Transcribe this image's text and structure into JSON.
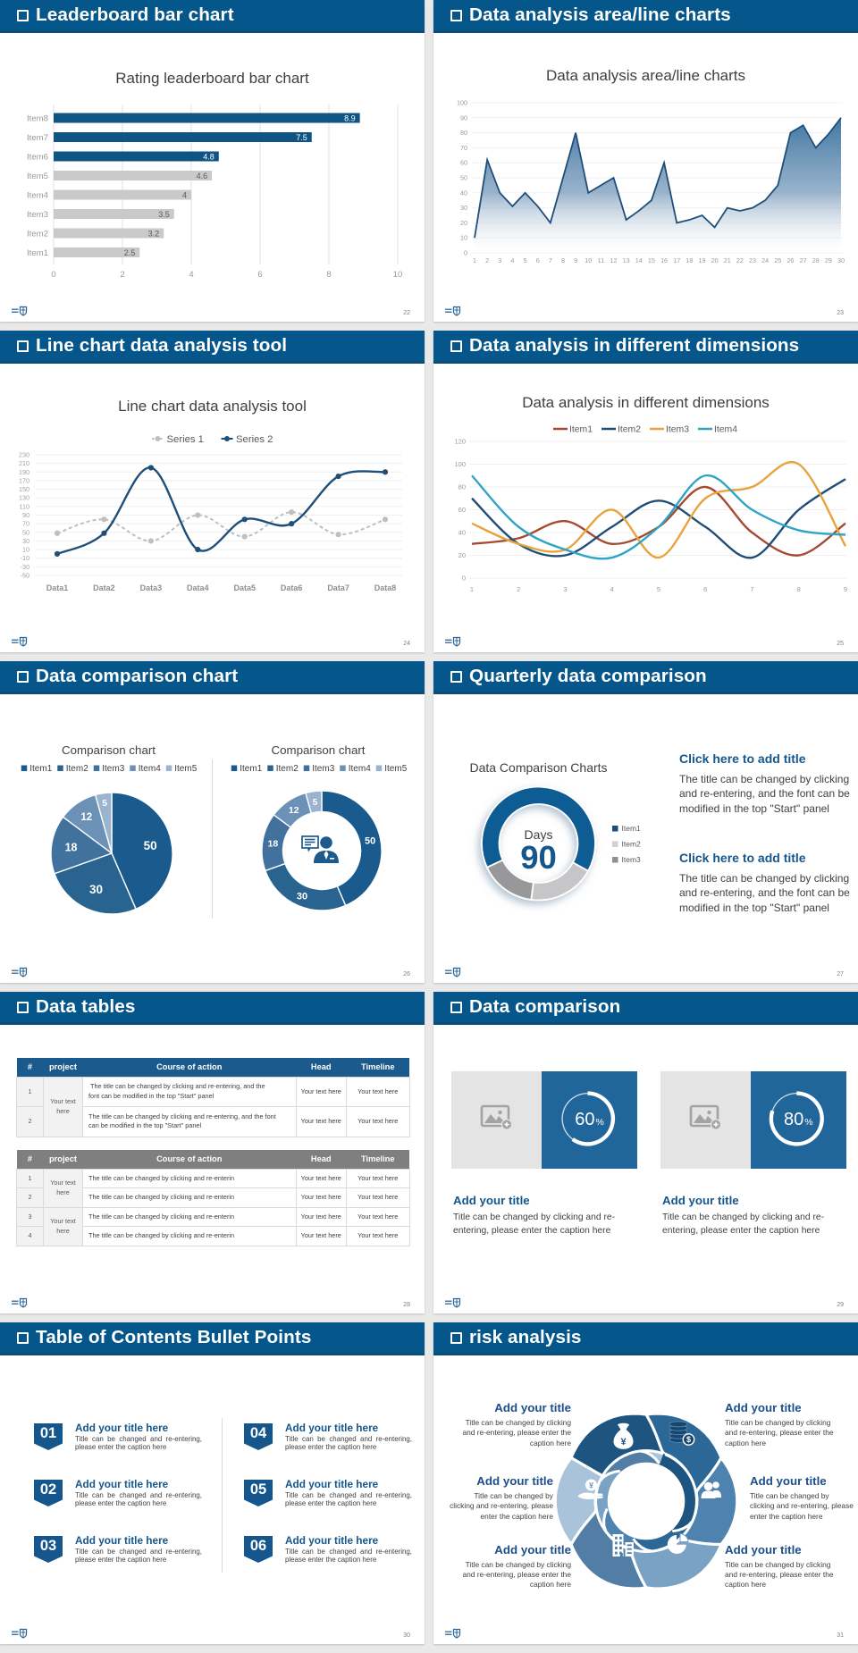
{
  "theme": {
    "page_bg": "#e9e9e9",
    "slide_bg": "#ffffff",
    "header_bg": "#05568a",
    "header_edge": "#0d4c77",
    "header_text": "#ffffff",
    "accent_blue": "#15568c",
    "dark_blue": "#1f4e79",
    "text_dark": "#404040",
    "text_gray": "#9a9a9a"
  },
  "slides": {
    "s22": {
      "header_title": "Leaderboard bar chart",
      "page_number": "22"
    },
    "s23": {
      "header_title": "Data analysis area/line charts",
      "page_number": "23"
    },
    "s24": {
      "header_title": "Line chart data analysis tool",
      "page_number": "24"
    },
    "s25": {
      "header_title": "Data analysis in different dimensions",
      "page_number": "25"
    },
    "s26": {
      "header_title": "Data comparison chart",
      "page_number": "26"
    },
    "s27": {
      "header_title": "Quarterly data comparison",
      "page_number": "27",
      "chart_title": "Data Comparison Charts",
      "blocks": [
        {
          "title": "Click here to add title",
          "body": "The title can be changed by clicking and re-entering, and the font can be modified in the top \"Start\" panel"
        },
        {
          "title": "Click here to add title",
          "body": "The title can be changed by clicking and re-entering, and the font can be modified in the top \"Start\" panel"
        }
      ]
    },
    "s28": {
      "header_title": "Data tables",
      "page_number": "28",
      "table1": {
        "headers": [
          "#",
          "project",
          "Course of action",
          "Head",
          "Timeline"
        ],
        "merged_project": "Your text here",
        "rows": [
          {
            "num": "1",
            "course": " The title can be changed by clicking and re-entering, and the font can be modified in the top \"Start\" panel",
            "head": "Your text here",
            "timeline": "Your text here"
          },
          {
            "num": "2",
            "course": "The title can be changed by clicking and re-entering, and the font can be modified in the top \"Start\" panel",
            "head": "Your text here",
            "timeline": "Your text here"
          }
        ]
      },
      "table2": {
        "headers": [
          "#",
          "project",
          "Course of action",
          "Head",
          "Timeline"
        ],
        "merged_project": "Your text here",
        "rows": [
          {
            "num": "1",
            "course": "The title can be changed by clicking and re-enterin",
            "head": "Your text here",
            "timeline": "Your text here"
          },
          {
            "num": "2",
            "course": "The title can be changed by clicking and re-enterin",
            "head": "Your text here",
            "timeline": "Your text here"
          },
          {
            "num": "3",
            "course": "The title can be changed by clicking and re-enterin",
            "head": "Your text here",
            "timeline": "Your text here"
          },
          {
            "num": "4",
            "course": "The title can be changed by clicking and re-enterin",
            "head": "Your text here",
            "timeline": "Your text here"
          }
        ]
      }
    },
    "s29": {
      "header_title": "Data comparison",
      "page_number": "29",
      "panel_color": "#21669b",
      "placeholder_bg": "#e4e4e4",
      "placeholder_icon": "image-plus-icon",
      "cards": [
        {
          "percent": "60",
          "unit": "%",
          "title": "Add your title",
          "caption": "Title can be changed by clicking and re-entering, please enter the caption here"
        },
        {
          "percent": "80",
          "unit": "%",
          "title": "Add your title",
          "caption": "Title can be changed by clicking and re-entering, please enter the caption here"
        }
      ]
    },
    "s30": {
      "header_title": "Table of Contents Bullet Points",
      "page_number": "30",
      "items": [
        {
          "number": "01",
          "title": "Add your title here",
          "caption": "Title can be changed and re-entering, please enter the caption here"
        },
        {
          "number": "02",
          "title": "Add your title here",
          "caption": "Title can be changed and re-entering, please enter the caption here"
        },
        {
          "number": "03",
          "title": "Add your title here",
          "caption": "Title can be changed and re-entering, please enter the caption here"
        },
        {
          "number": "04",
          "title": "Add your title here",
          "caption": "Title can be changed and re-entering, please enter the caption here"
        },
        {
          "number": "05",
          "title": "Add your title here",
          "caption": "Title can be changed and re-entering, please enter the caption here"
        },
        {
          "number": "06",
          "title": "Add your title here",
          "caption": "Title can be changed and re-entering, please enter the caption here"
        }
      ]
    },
    "s31": {
      "header_title": "risk analysis",
      "page_number": "31",
      "items": [
        {
          "icon": "money-bag",
          "side": "left",
          "title": "Add your title",
          "caption": "Title can be changed by clicking and re-entering, please enter the caption here"
        },
        {
          "icon": "coins",
          "side": "right",
          "title": "Add your title",
          "caption": "Title can be changed by clicking and re-entering, please enter the caption here"
        },
        {
          "icon": "people",
          "side": "right",
          "title": "Add your title",
          "caption": "Title can be changed by clicking and re-entering, please enter the caption here"
        },
        {
          "icon": "pie",
          "side": "right",
          "title": "Add your title",
          "caption": "Title can be changed by clicking and re-entering, please enter the caption here"
        },
        {
          "icon": "building",
          "side": "left",
          "title": "Add your title",
          "caption": "Title can be changed by clicking and re-entering, please enter the caption here"
        },
        {
          "icon": "hand-money",
          "side": "left",
          "title": "Add your title",
          "caption": "Title can be changed by clicking and re-entering, please enter the caption here"
        }
      ]
    }
  },
  "chart_data": [
    {
      "id": "bar22",
      "type": "bar",
      "orientation": "horizontal",
      "title": "Rating leaderboard bar chart",
      "categories": [
        "Item1",
        "Item2",
        "Item3",
        "Item4",
        "Item5",
        "Item6",
        "Item7",
        "Item8"
      ],
      "values": [
        2.5,
        3.2,
        3.5,
        4,
        4.6,
        4.8,
        7.5,
        8.9
      ],
      "bar_colors": [
        "#c9c9c9",
        "#c9c9c9",
        "#c9c9c9",
        "#c9c9c9",
        "#c9c9c9",
        "#0f5483",
        "#0f5483",
        "#0f5483"
      ],
      "label_colors": [
        "#595959",
        "#595959",
        "#595959",
        "#595959",
        "#595959",
        "#ffffff",
        "#ffffff",
        "#ffffff"
      ],
      "xlabel": "",
      "ylabel": "",
      "xlim": [
        0,
        10
      ],
      "xticks": [
        0,
        2,
        4,
        6,
        8,
        10
      ],
      "grid": true,
      "legend_position": "none"
    },
    {
      "id": "area23",
      "type": "area",
      "title": "Data analysis area/line charts",
      "x": [
        1,
        2,
        3,
        4,
        5,
        6,
        7,
        8,
        9,
        10,
        11,
        12,
        13,
        14,
        15,
        16,
        17,
        18,
        19,
        20,
        21,
        22,
        23,
        24,
        25,
        26,
        27,
        28,
        29,
        30
      ],
      "values": [
        10,
        62,
        40,
        31,
        40,
        31,
        20,
        50,
        80,
        40,
        45,
        50,
        22,
        28,
        35,
        60,
        20,
        22,
        25,
        17,
        30,
        28,
        30,
        35,
        45,
        80,
        85,
        70,
        79,
        90
      ],
      "xlabel": "",
      "ylabel": "",
      "ylim": [
        0,
        100
      ],
      "ytick_step": 10,
      "line_color": "#1f4e79",
      "grid": true,
      "legend_position": "none"
    },
    {
      "id": "line24",
      "type": "line",
      "title": "Line chart data analysis tool",
      "categories": [
        "Data1",
        "Data2",
        "Data3",
        "Data4",
        "Data5",
        "Data6",
        "Data7",
        "Data8"
      ],
      "series": [
        {
          "name": "Series 1",
          "color": "#bfbfbf",
          "dashed": true,
          "values": [
            48,
            80,
            30,
            90,
            40,
            97,
            45,
            80
          ]
        },
        {
          "name": "Series 2",
          "color": "#1f4e79",
          "dashed": false,
          "values": [
            0,
            48,
            200,
            10,
            80,
            70,
            180,
            190
          ]
        }
      ],
      "xlabel": "",
      "ylabel": "",
      "ylim": [
        -50,
        230
      ],
      "ytick_step": 20,
      "grid": true,
      "legend_position": "top",
      "smooth": true,
      "markers": true
    },
    {
      "id": "line25",
      "type": "line",
      "title": "Data analysis in different dimensions",
      "x": [
        1,
        2,
        3,
        4,
        5,
        6,
        7,
        8,
        9
      ],
      "series": [
        {
          "name": "Item1",
          "color": "#a64a31",
          "values": [
            30,
            35,
            50,
            30,
            45,
            80,
            40,
            20,
            48
          ]
        },
        {
          "name": "Item2",
          "color": "#1f4e79",
          "values": [
            70,
            30,
            20,
            45,
            68,
            45,
            18,
            60,
            87
          ]
        },
        {
          "name": "Item3",
          "color": "#e8a33d",
          "values": [
            48,
            30,
            25,
            60,
            18,
            70,
            80,
            100,
            28
          ]
        },
        {
          "name": "Item4",
          "color": "#2ea4c6",
          "values": [
            90,
            45,
            25,
            18,
            45,
            90,
            60,
            42,
            38
          ]
        }
      ],
      "xlabel": "",
      "ylabel": "",
      "ylim": [
        0,
        120
      ],
      "ytick_step": 20,
      "grid": true,
      "legend_position": "top",
      "smooth": true,
      "markers": false
    },
    {
      "id": "pie26",
      "type": "pie",
      "subtype": "pie",
      "title": "Comparison chart",
      "labels": [
        "Item1",
        "Item2",
        "Item3",
        "Item4",
        "Item5"
      ],
      "values": [
        50,
        30,
        18,
        12,
        5
      ],
      "colors": [
        "#1b5a8c",
        "#28648f",
        "#41729e",
        "#6b92b6",
        "#9ab3cf"
      ],
      "legend_position": "top"
    },
    {
      "id": "donut26",
      "type": "pie",
      "subtype": "donut",
      "title": "Comparison chart",
      "labels": [
        "Item1",
        "Item2",
        "Item3",
        "Item4",
        "Item5"
      ],
      "values": [
        50,
        30,
        18,
        12,
        5
      ],
      "colors": [
        "#1b5a8c",
        "#28648f",
        "#41729e",
        "#6b92b6",
        "#9ab3cf"
      ],
      "center_icon": "businessman-icon",
      "legend_position": "top"
    },
    {
      "id": "donut27",
      "type": "pie",
      "subtype": "donut",
      "title": "Data Comparison Charts",
      "labels": [
        "Item1",
        "Item2",
        "Item3"
      ],
      "values": [
        65,
        19,
        16
      ],
      "colors": [
        "#115d94",
        "#c6c6c8",
        "#98989a"
      ],
      "legend_colors": [
        "#1f4e79",
        "#d0d0d0",
        "#8f8f8f"
      ],
      "center_label": "Days",
      "center_value": "90",
      "legend_position": "right"
    },
    {
      "id": "ring60",
      "type": "pie",
      "subtype": "progress-ring",
      "value": 60,
      "label": "60",
      "unit": "%"
    },
    {
      "id": "ring80",
      "type": "pie",
      "subtype": "progress-ring",
      "value": 80,
      "label": "80",
      "unit": "%"
    }
  ]
}
